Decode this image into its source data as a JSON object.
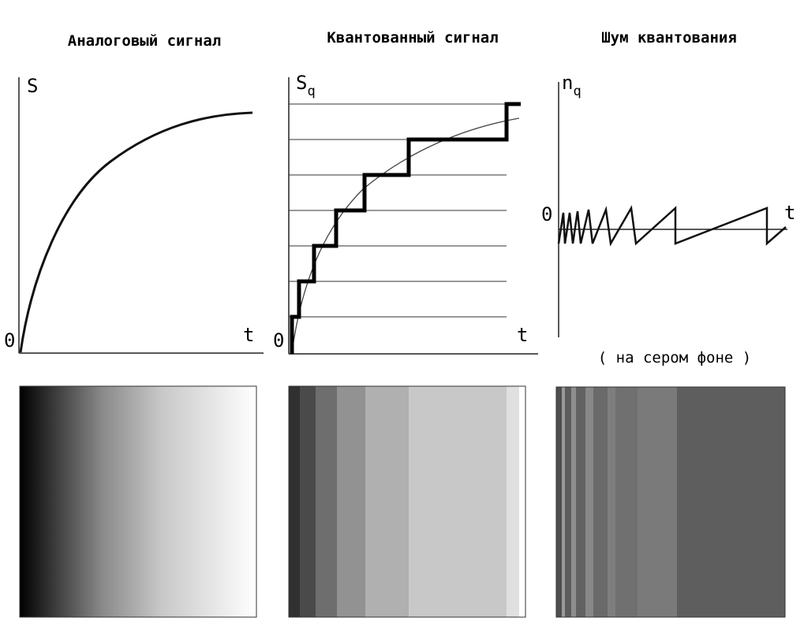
{
  "panels": {
    "analog": {
      "title": "Аналоговый сигнал",
      "y_axis_label": "S",
      "x_axis_label": "t",
      "origin_label": "0",
      "swatch_colors": [
        "#000000",
        "#ffffff"
      ]
    },
    "quantized": {
      "title": "Квантованный сигнал",
      "y_axis_label": "S",
      "y_axis_subscript": "q",
      "x_axis_label": "t",
      "origin_label": "0",
      "swatch_colors": [
        "#303030",
        "#4a4a4a",
        "#6e6e6e",
        "#929292",
        "#b0b0b0",
        "#c8c8c8",
        "#e0e0e0",
        "#ffffff"
      ]
    },
    "noise": {
      "title": "Шум квантования",
      "y_axis_label": "n",
      "y_axis_subscript": "q",
      "x_axis_label": "t",
      "origin_label": "0",
      "caption": "( на сером фоне )",
      "swatch_colors": [
        "#4e4e4e",
        "#9a9a9a",
        "#5c5c5c",
        "#8e8e8e",
        "#626262",
        "#888888",
        "#6a6a6a",
        "#7e7e7e",
        "#707070",
        "#7a7a7a",
        "#5e5e5e"
      ]
    }
  }
}
